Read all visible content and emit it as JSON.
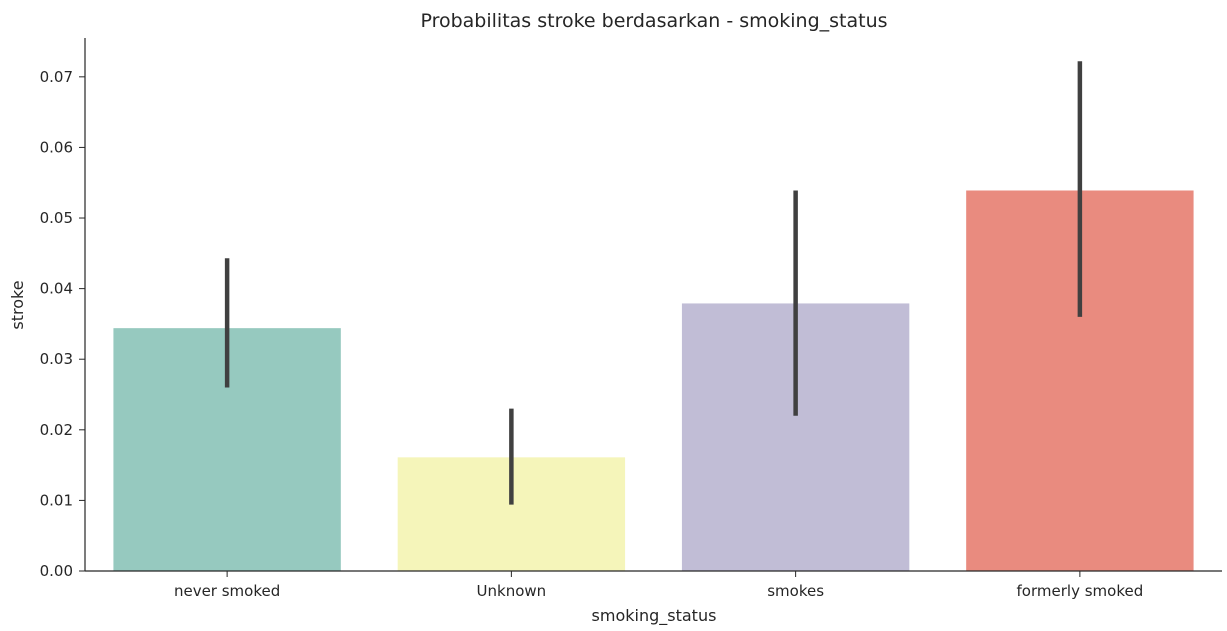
{
  "chart_data": {
    "type": "bar",
    "title": "Probabilitas stroke berdasarkan - smoking_status",
    "xlabel": "smoking_status",
    "ylabel": "stroke",
    "categories": [
      "never smoked",
      "Unknown",
      "smokes",
      "formerly smoked"
    ],
    "values": [
      0.0344,
      0.0161,
      0.0379,
      0.0539
    ],
    "error_bars": [
      {
        "low": 0.026,
        "high": 0.0443
      },
      {
        "low": 0.0094,
        "high": 0.023
      },
      {
        "low": 0.022,
        "high": 0.0539
      },
      {
        "low": 0.036,
        "high": 0.0722
      }
    ],
    "colors": [
      "#96c9bf",
      "#f5f5ba",
      "#c1bdd6",
      "#e98b7f"
    ],
    "error_color": "#404040",
    "ylim": [
      0,
      0.0755
    ],
    "yticks": [
      0.0,
      0.01,
      0.02,
      0.03,
      0.04,
      0.05,
      0.06,
      0.07
    ],
    "ytick_labels": [
      "0.00",
      "0.01",
      "0.02",
      "0.03",
      "0.04",
      "0.05",
      "0.06",
      "0.07"
    ],
    "grid": false,
    "legend": "none"
  }
}
